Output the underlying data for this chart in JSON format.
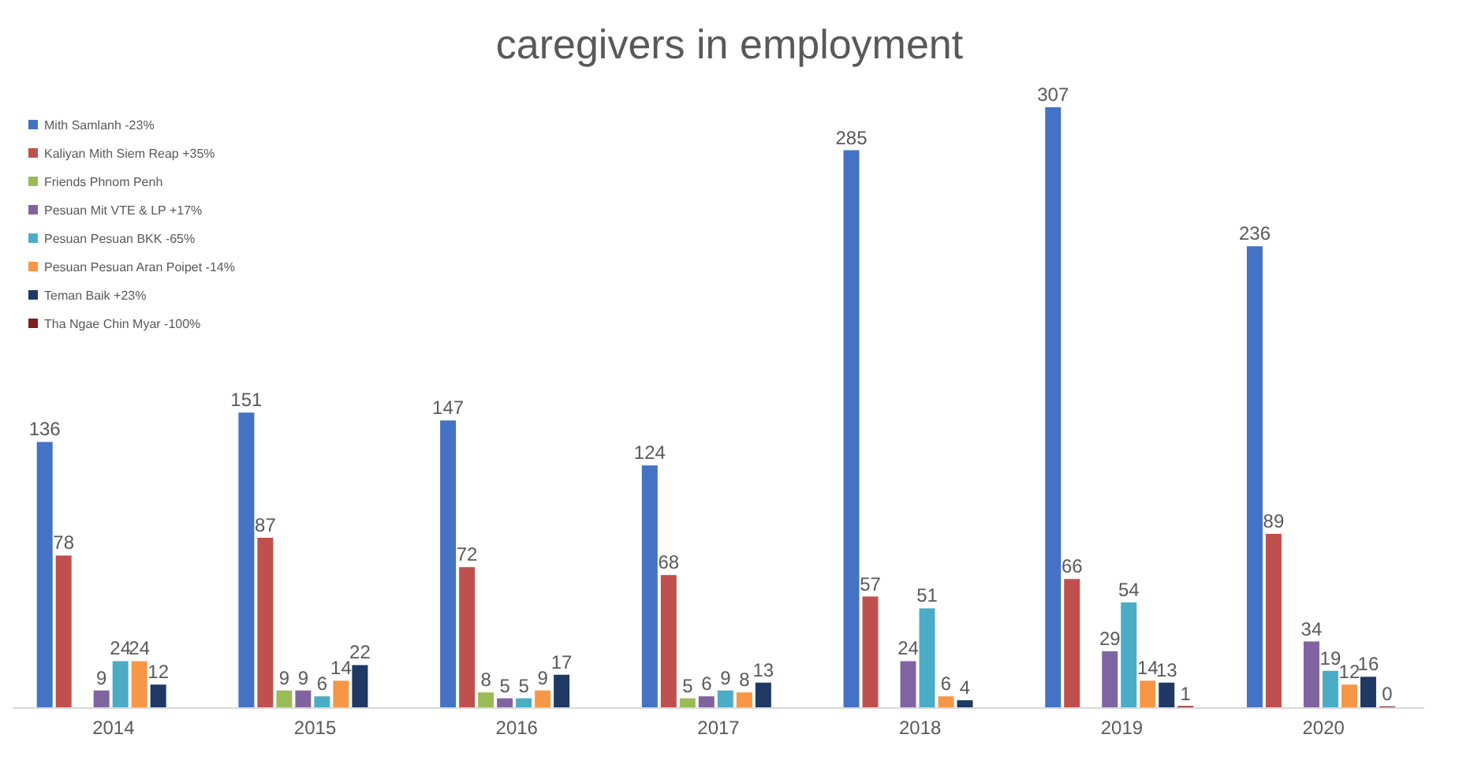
{
  "chart_data": {
    "type": "bar",
    "title": "caregivers in employment",
    "categories": [
      "2014",
      "2015",
      "2016",
      "2017",
      "2018",
      "2019",
      "2020"
    ],
    "series": [
      {
        "name": "Mith Samlanh -23%",
        "color": "#4472c4",
        "values": [
          136,
          151,
          147,
          124,
          285,
          307,
          236
        ]
      },
      {
        "name": "Kaliyan Mith Siem Reap +35%",
        "color": "#c0504d",
        "values": [
          78,
          87,
          72,
          68,
          57,
          66,
          89
        ]
      },
      {
        "name": "Friends Phnom Penh",
        "color": "#9bbb59",
        "values": [
          null,
          9,
          8,
          5,
          null,
          null,
          null
        ]
      },
      {
        "name": "Pesuan Mit VTE & LP +17%",
        "color": "#8064a2",
        "values": [
          9,
          9,
          5,
          6,
          24,
          29,
          34
        ]
      },
      {
        "name": "Pesuan Pesuan BKK -65%",
        "color": "#4bacc6",
        "values": [
          24,
          6,
          5,
          9,
          51,
          54,
          19
        ]
      },
      {
        "name": "Pesuan Pesuan Aran Poipet -14%",
        "color": "#f79646",
        "values": [
          24,
          14,
          9,
          8,
          6,
          14,
          12
        ]
      },
      {
        "name": "Teman Baik +23%",
        "color": "#1f3864",
        "values": [
          12,
          22,
          17,
          13,
          4,
          13,
          16
        ]
      },
      {
        "name": "Tha Ngae Chin Myar -100%",
        "color": "#7f1f1f",
        "values": [
          null,
          null,
          null,
          null,
          null,
          1,
          0
        ]
      }
    ],
    "data_labels": true,
    "legend": "top left",
    "grid": false
  }
}
